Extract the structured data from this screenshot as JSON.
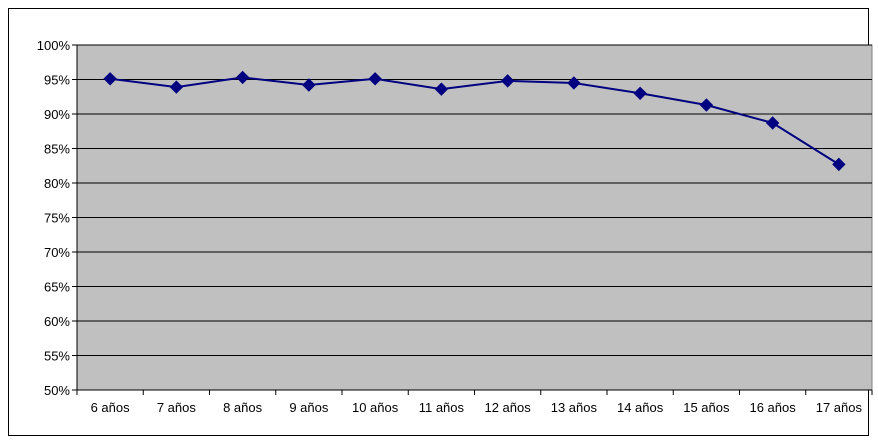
{
  "chart_data": {
    "type": "line",
    "title": "",
    "xlabel": "",
    "ylabel": "",
    "categories": [
      "6 años",
      "7 años",
      "8 años",
      "9 años",
      "10 años",
      "11 años",
      "12 años",
      "13 años",
      "14 años",
      "15 años",
      "16 años",
      "17 años"
    ],
    "series": [
      {
        "values": [
          95.1,
          93.9,
          95.3,
          94.2,
          95.1,
          93.6,
          94.8,
          94.5,
          93.0,
          91.3,
          88.7,
          82.7
        ],
        "color": "#000080",
        "marker": "diamond"
      }
    ],
    "ylim": [
      50,
      100
    ],
    "yticks": [
      "50%",
      "55%",
      "60%",
      "65%",
      "70%",
      "75%",
      "80%",
      "85%",
      "90%",
      "95%",
      "100%"
    ],
    "grid": true,
    "legend": "none",
    "plot_background": "#c0c0c0"
  }
}
